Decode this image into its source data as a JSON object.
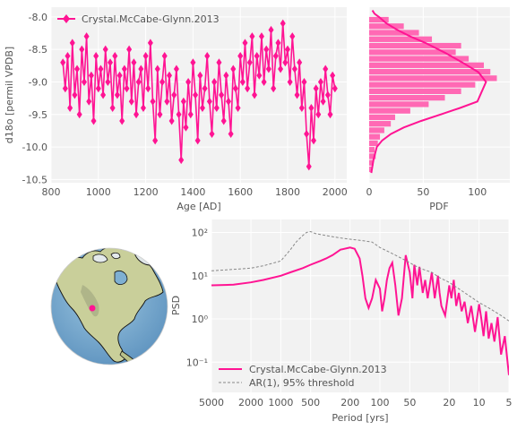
{
  "chart_data": [
    {
      "type": "line",
      "xlabel": "Age [AD]",
      "ylabel": "d18o [permil VPDB]",
      "xlim": [
        800,
        2050
      ],
      "ylim": [
        -10.55,
        -7.85
      ],
      "xticks": [
        800,
        1000,
        1200,
        1400,
        1600,
        1800,
        2000
      ],
      "yticks": [
        -10.5,
        -10.0,
        -9.5,
        -9.0,
        -8.5,
        -8.0
      ],
      "ytick_labels": [
        "-10.5",
        "-10.0",
        "-9.5",
        "-9.0",
        "-8.5",
        "-8.0"
      ],
      "legend": "top-left",
      "grid": true,
      "series": [
        {
          "name": "Crystal.McCabe-Glynn.2013",
          "color": "#ff1493",
          "marker": "diamond",
          "x": [
            850,
            860,
            870,
            880,
            890,
            900,
            910,
            920,
            930,
            940,
            950,
            960,
            970,
            980,
            990,
            1000,
            1010,
            1020,
            1030,
            1040,
            1050,
            1060,
            1070,
            1080,
            1090,
            1100,
            1110,
            1120,
            1130,
            1140,
            1150,
            1160,
            1170,
            1180,
            1190,
            1200,
            1210,
            1220,
            1230,
            1240,
            1250,
            1260,
            1270,
            1280,
            1290,
            1300,
            1310,
            1320,
            1330,
            1340,
            1350,
            1360,
            1370,
            1380,
            1390,
            1400,
            1410,
            1420,
            1430,
            1440,
            1450,
            1460,
            1470,
            1480,
            1490,
            1500,
            1510,
            1520,
            1530,
            1540,
            1550,
            1560,
            1570,
            1580,
            1590,
            1600,
            1610,
            1620,
            1630,
            1640,
            1650,
            1660,
            1670,
            1680,
            1690,
            1700,
            1710,
            1720,
            1730,
            1740,
            1750,
            1760,
            1770,
            1780,
            1790,
            1800,
            1810,
            1820,
            1830,
            1840,
            1850,
            1860,
            1870,
            1880,
            1890,
            1900,
            1910,
            1920,
            1930,
            1940,
            1950,
            1960,
            1970,
            1980,
            1990,
            2000
          ],
          "y": [
            -8.7,
            -9.1,
            -8.6,
            -9.4,
            -8.4,
            -9.2,
            -8.8,
            -9.5,
            -8.5,
            -9.0,
            -8.3,
            -9.3,
            -8.9,
            -9.6,
            -8.6,
            -9.1,
            -8.8,
            -9.2,
            -8.5,
            -9.0,
            -8.7,
            -9.4,
            -8.6,
            -9.2,
            -8.9,
            -9.6,
            -8.8,
            -9.1,
            -8.5,
            -9.3,
            -8.7,
            -9.5,
            -9.0,
            -8.8,
            -9.4,
            -8.6,
            -9.1,
            -8.4,
            -9.3,
            -9.9,
            -8.8,
            -9.5,
            -9.0,
            -8.6,
            -9.3,
            -8.9,
            -9.6,
            -9.2,
            -8.8,
            -9.5,
            -10.2,
            -9.3,
            -9.7,
            -9.0,
            -9.5,
            -8.7,
            -9.2,
            -9.9,
            -8.9,
            -9.4,
            -9.1,
            -8.6,
            -9.3,
            -9.8,
            -9.0,
            -9.4,
            -8.7,
            -9.2,
            -9.6,
            -8.9,
            -9.3,
            -9.8,
            -8.8,
            -9.1,
            -9.4,
            -8.6,
            -9.0,
            -8.4,
            -9.1,
            -8.7,
            -8.3,
            -9.2,
            -8.6,
            -8.9,
            -8.3,
            -9.0,
            -8.5,
            -8.8,
            -8.2,
            -9.1,
            -8.6,
            -8.4,
            -8.8,
            -8.1,
            -8.7,
            -8.5,
            -9.0,
            -8.3,
            -8.8,
            -9.2,
            -8.7,
            -9.4,
            -9.0,
            -9.8,
            -10.3,
            -9.4,
            -9.9,
            -9.1,
            -9.5,
            -9.0,
            -9.3,
            -8.8,
            -9.2,
            -9.5,
            -8.9,
            -9.1
          ]
        }
      ]
    },
    {
      "type": "bar",
      "orientation": "horizontal",
      "xlabel": "PDF",
      "xlim": [
        0,
        130
      ],
      "xticks": [
        0,
        50,
        100
      ],
      "ylim": [
        -10.55,
        -7.85
      ],
      "color": "#ff69b4",
      "bin_edges": [
        -10.4,
        -10.3,
        -10.2,
        -10.1,
        -10.0,
        -9.9,
        -9.8,
        -9.7,
        -9.6,
        -9.5,
        -9.4,
        -9.3,
        -9.2,
        -9.1,
        -9.0,
        -8.9,
        -8.8,
        -8.7,
        -8.6,
        -8.5,
        -8.4,
        -8.3,
        -8.2,
        -8.1,
        -8.0
      ],
      "values": [
        2,
        4,
        6,
        5,
        8,
        10,
        14,
        20,
        24,
        38,
        55,
        70,
        85,
        98,
        118,
        112,
        106,
        92,
        80,
        85,
        58,
        46,
        32,
        18
      ],
      "kde_x": [
        2,
        4,
        7,
        12,
        20,
        32,
        48,
        66,
        84,
        100,
        108,
        101,
        86,
        70,
        52,
        38,
        26,
        16,
        9,
        5,
        3
      ],
      "kde_y": [
        -10.4,
        -10.2,
        -10.0,
        -9.9,
        -9.8,
        -9.7,
        -9.6,
        -9.5,
        -9.4,
        -9.3,
        -9.0,
        -8.85,
        -8.7,
        -8.55,
        -8.4,
        -8.3,
        -8.2,
        -8.1,
        -8.0,
        -7.95,
        -7.9
      ]
    },
    {
      "type": "line",
      "xlabel": "Period [yrs]",
      "ylabel": "PSD",
      "xscale": "log",
      "yscale": "log",
      "x_inverted": true,
      "xlim": [
        5000,
        5
      ],
      "ylim": [
        0.02,
        200
      ],
      "xticks": [
        5000,
        2000,
        1000,
        500,
        200,
        100,
        50,
        20,
        10,
        5
      ],
      "yticks": [
        0.1,
        1,
        10,
        100
      ],
      "ytick_labels": [
        "10⁻¹",
        "10⁰",
        "10¹",
        "10²"
      ],
      "legend": "bottom-left",
      "grid": true,
      "series": [
        {
          "name": "Crystal.McCabe-Glynn.2013",
          "color": "#ff1493",
          "style": "solid",
          "x": [
            5000,
            3000,
            2000,
            1500,
            1000,
            800,
            600,
            500,
            400,
            350,
            300,
            250,
            200,
            180,
            160,
            150,
            140,
            130,
            120,
            110,
            100,
            95,
            90,
            85,
            80,
            75,
            70,
            65,
            60,
            55,
            50,
            47,
            45,
            42,
            40,
            37,
            35,
            33,
            30,
            28,
            26,
            25,
            24,
            22,
            20,
            19,
            18,
            17,
            16,
            15,
            14,
            13,
            12,
            11,
            10,
            9.5,
            9,
            8.5,
            8,
            7.5,
            7,
            6.5,
            6,
            5.5,
            5
          ],
          "y": [
            6,
            6.2,
            7,
            8,
            10,
            12,
            15,
            18,
            22,
            25,
            30,
            40,
            45,
            42,
            25,
            10,
            3,
            1.8,
            3,
            8,
            5,
            1.5,
            3,
            8,
            15,
            20,
            6,
            1.2,
            3,
            30,
            12,
            3,
            18,
            6,
            16,
            4,
            8,
            3,
            12,
            3,
            10,
            4,
            2,
            1.2,
            6,
            3,
            8,
            2,
            4,
            1.5,
            2.5,
            0.8,
            2,
            0.5,
            2.2,
            1,
            0.4,
            1.5,
            0.35,
            0.8,
            0.3,
            1.1,
            0.15,
            0.4,
            0.05
          ]
        },
        {
          "name": "AR(1), 95% threshold",
          "color": "#888888",
          "style": "dashed",
          "x": [
            5000,
            3000,
            2000,
            1500,
            1000,
            800,
            700,
            600,
            550,
            500,
            450,
            400,
            350,
            300,
            250,
            200,
            150,
            120,
            100,
            80,
            60,
            50,
            40,
            30,
            25,
            20,
            15,
            12,
            10,
            8,
            6,
            5
          ],
          "y": [
            13,
            14,
            15,
            17,
            22,
            40,
            60,
            85,
            100,
            105,
            95,
            90,
            85,
            80,
            75,
            70,
            65,
            60,
            45,
            35,
            25,
            20,
            15,
            12,
            9,
            7,
            4.5,
            3.2,
            2.4,
            1.8,
            1.2,
            0.9
          ]
        }
      ]
    }
  ],
  "map": {
    "marker_color": "#ff1493",
    "marker_label": "Crystal.McCabe-Glynn.2013"
  }
}
